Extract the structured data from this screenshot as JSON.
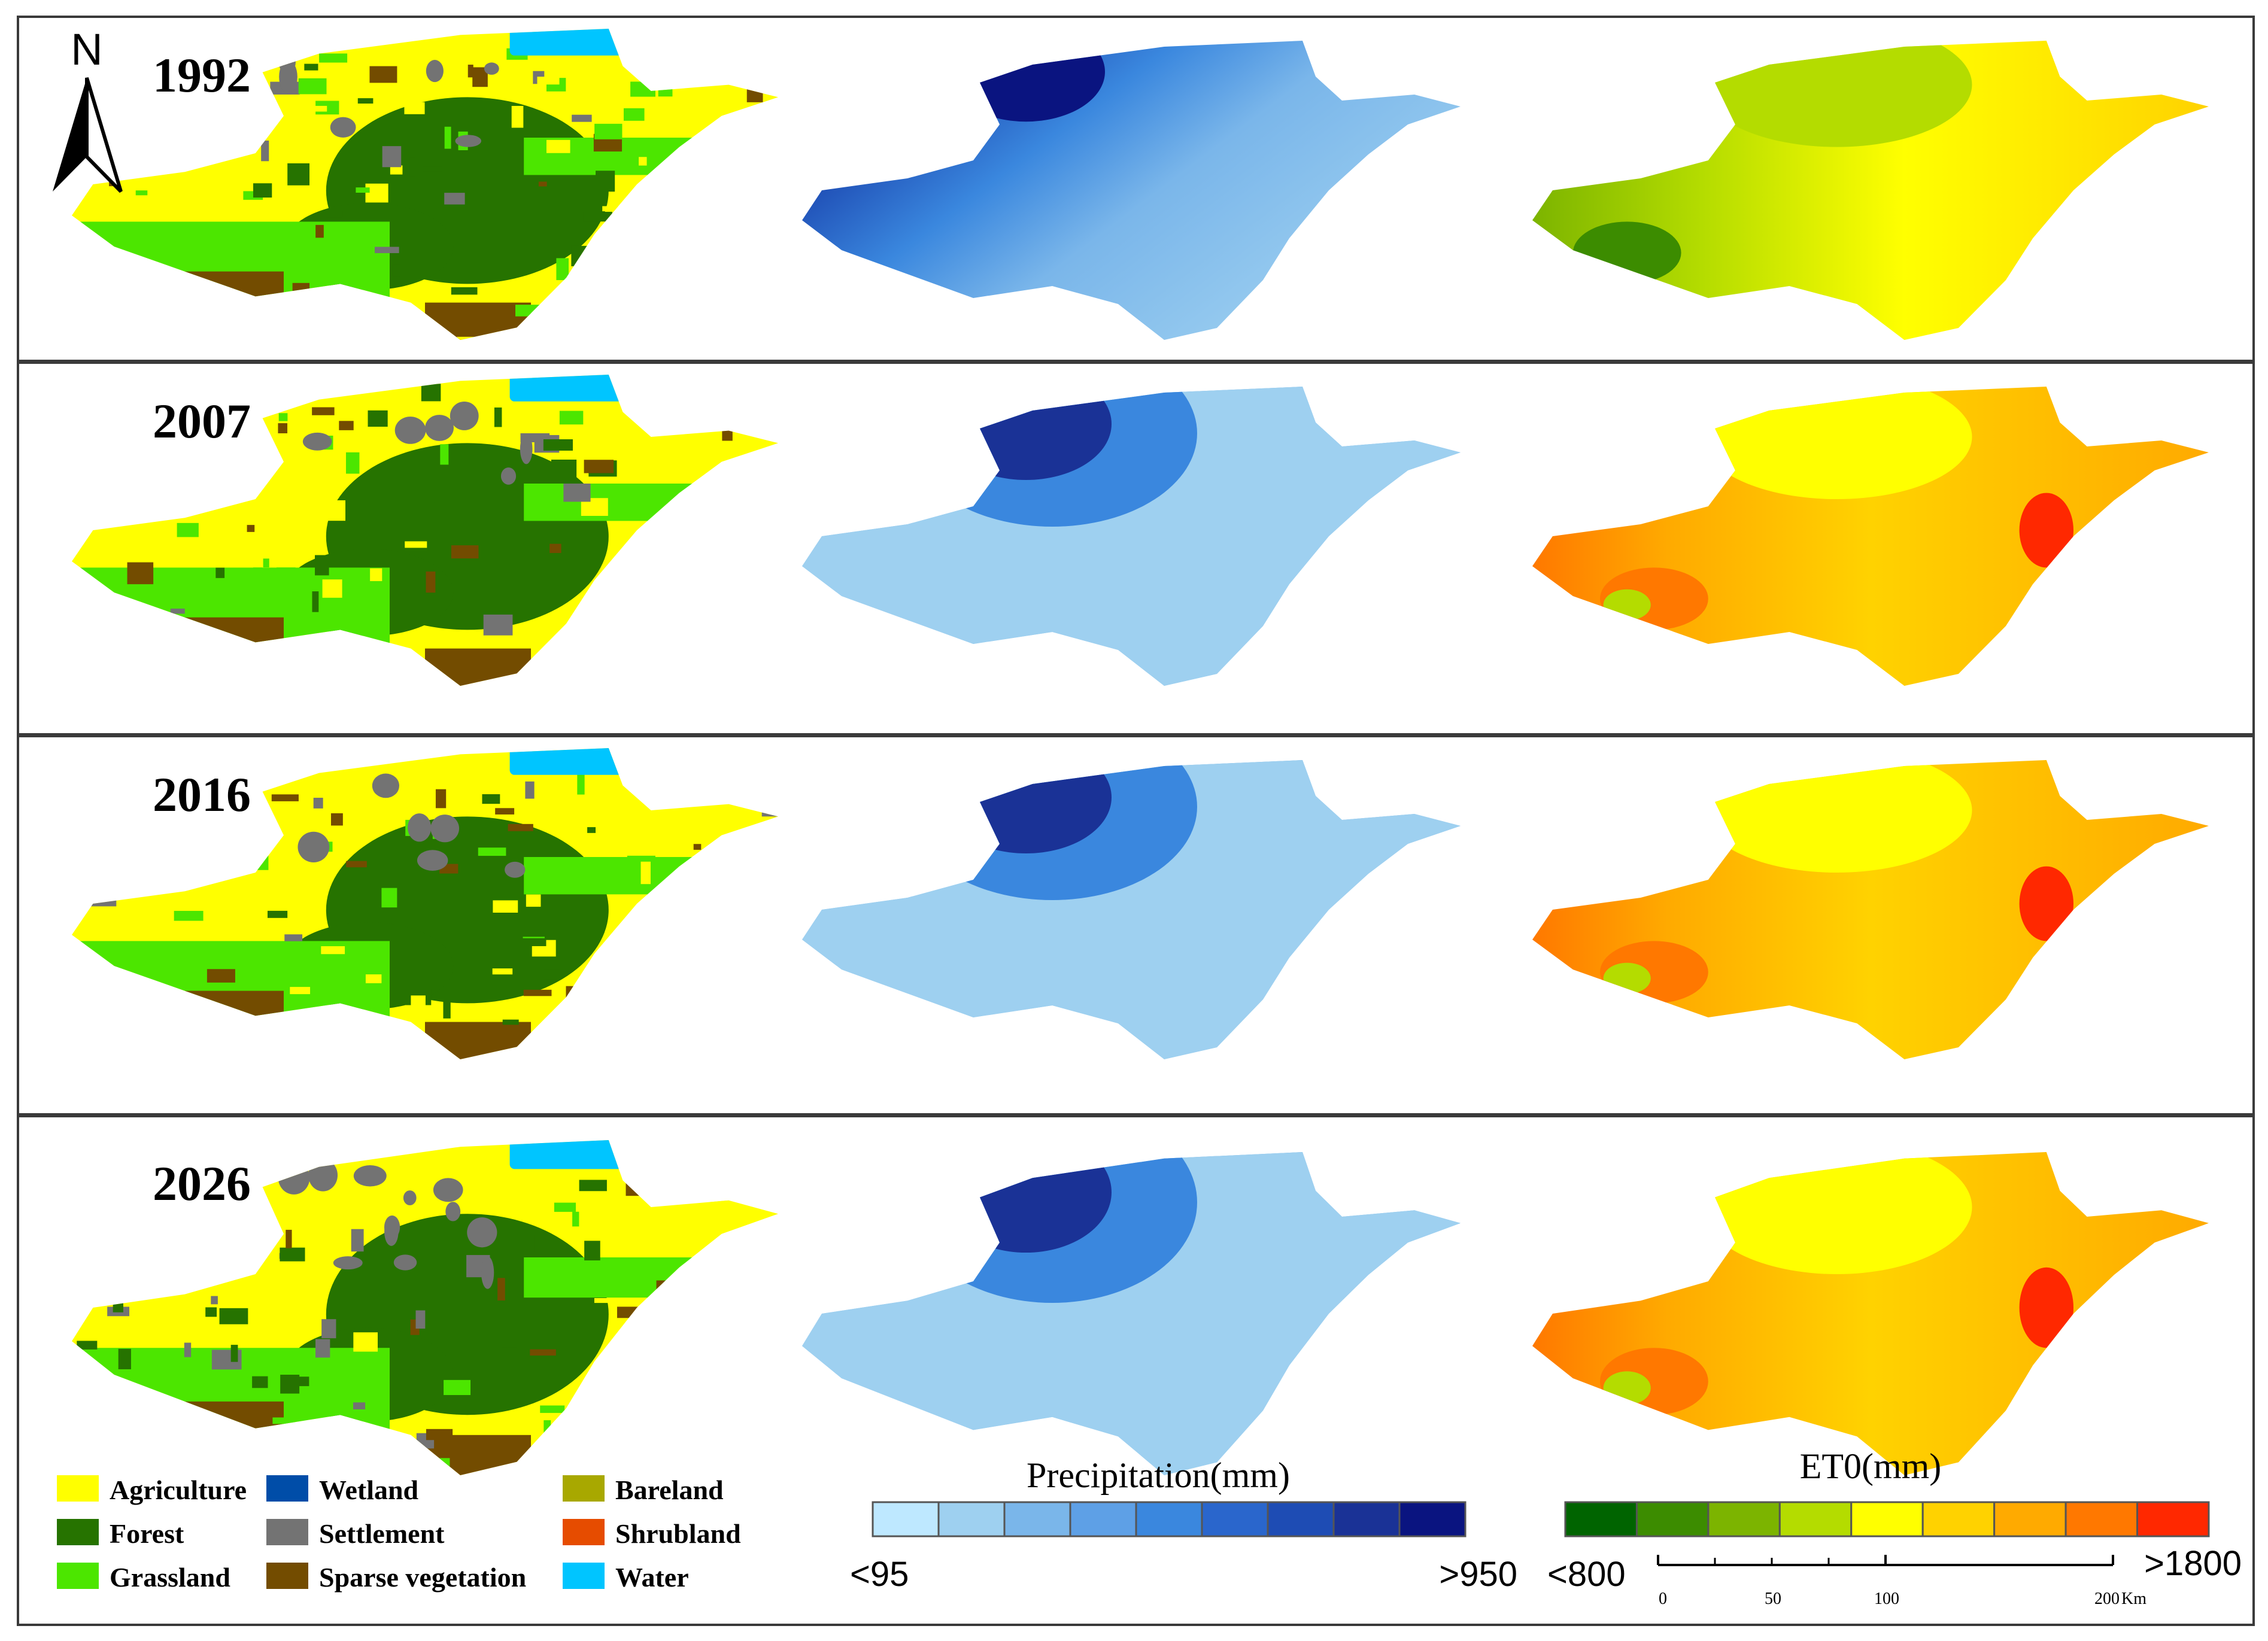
{
  "north_arrow": {
    "label": "N"
  },
  "panels": [
    {
      "year": "1992"
    },
    {
      "year": "2007"
    },
    {
      "year": "2016"
    },
    {
      "year": "2026"
    }
  ],
  "landcover_legend": [
    {
      "label": "Agriculture",
      "color": "#ffff00"
    },
    {
      "label": "Forest",
      "color": "#267300"
    },
    {
      "label": "Grassland",
      "color": "#4ce600"
    },
    {
      "label": "Wetland",
      "color": "#004da8"
    },
    {
      "label": "Settlement",
      "color": "#737373"
    },
    {
      "label": "Sparse vegetation",
      "color": "#734c00"
    },
    {
      "label": "Bareland",
      "color": "#a8a800"
    },
    {
      "label": "Shrubland",
      "color": "#e64c00"
    },
    {
      "label": "Water",
      "color": "#00c5ff"
    }
  ],
  "precipitation_legend": {
    "title": "Precipitation(mm)",
    "min_label": "<95",
    "max_label": ">950",
    "colors": [
      "#bee8ff",
      "#9ed0f0",
      "#7ab6ea",
      "#5ea0e6",
      "#3a87de",
      "#2a66cc",
      "#1e4cb4",
      "#1a3296",
      "#0a1480"
    ]
  },
  "et0_legend": {
    "title": "ET0(mm)",
    "min_label": "<800",
    "max_label": ">1800",
    "colors": [
      "#006400",
      "#3c8c00",
      "#7cb400",
      "#b4dc00",
      "#ffff00",
      "#ffd200",
      "#ffaa00",
      "#ff7800",
      "#ff2800"
    ]
  },
  "scale_bar": {
    "ticks": [
      "0",
      "50",
      "100",
      "200"
    ],
    "unit": "Km"
  },
  "colors": {
    "frame": "#3a3a3a",
    "text": "#000000"
  }
}
